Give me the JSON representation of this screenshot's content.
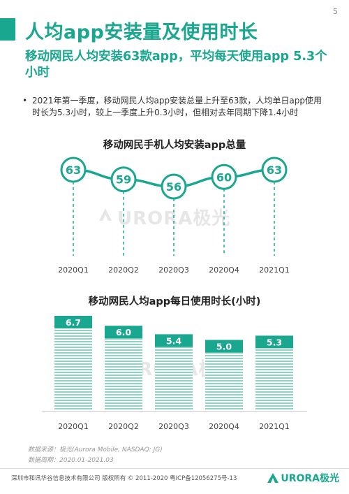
{
  "page_number": "5",
  "title": "人均app安装量及使用时长",
  "subtitle": "移动网民人均安装63款app，平均每天使用app 5.3个小时",
  "bullet": {
    "marker": "•",
    "text": "2021年第一季度，移动网民人均app安装总量上升至63款，人均单日app使用时长为5.3小时，较上一季度上升0.3小时，但相对去年同期下降1.4小时"
  },
  "watermark_text": "URORA极光",
  "source_text": "数据来源：极光(Aurora Mobile, NASDAQ: JG)",
  "period_text": "数据周期：2020.01-2021.03",
  "footer_text": "深圳市和讯华谷信息技术有限公司 版权所有 © 2011-2020 粤ICP备12056275号-13",
  "brand_text": "URORA极光",
  "colors": {
    "accent": "#1aa78f",
    "hatch": "#8fd3c4"
  },
  "chart_data": [
    {
      "type": "line",
      "title": "移动网民手机人均安装app总量",
      "categories": [
        "2020Q1",
        "2020Q2",
        "2020Q3",
        "2020Q4",
        "2021Q1"
      ],
      "values": [
        63,
        59,
        56,
        60,
        63
      ],
      "data_labels": true,
      "grid": false
    },
    {
      "type": "bar",
      "title": "移动网民人均app每日使用时长(小时)",
      "categories": [
        "2020Q1",
        "2020Q2",
        "2020Q3",
        "2020Q4",
        "2021Q1"
      ],
      "values": [
        6.7,
        6.0,
        5.4,
        5.0,
        5.3
      ],
      "value_labels": [
        "6.7",
        "6.0",
        "5.4",
        "5.0",
        "5.3"
      ],
      "ylim": [
        0,
        6.7
      ],
      "data_labels": true,
      "grid": false
    }
  ]
}
